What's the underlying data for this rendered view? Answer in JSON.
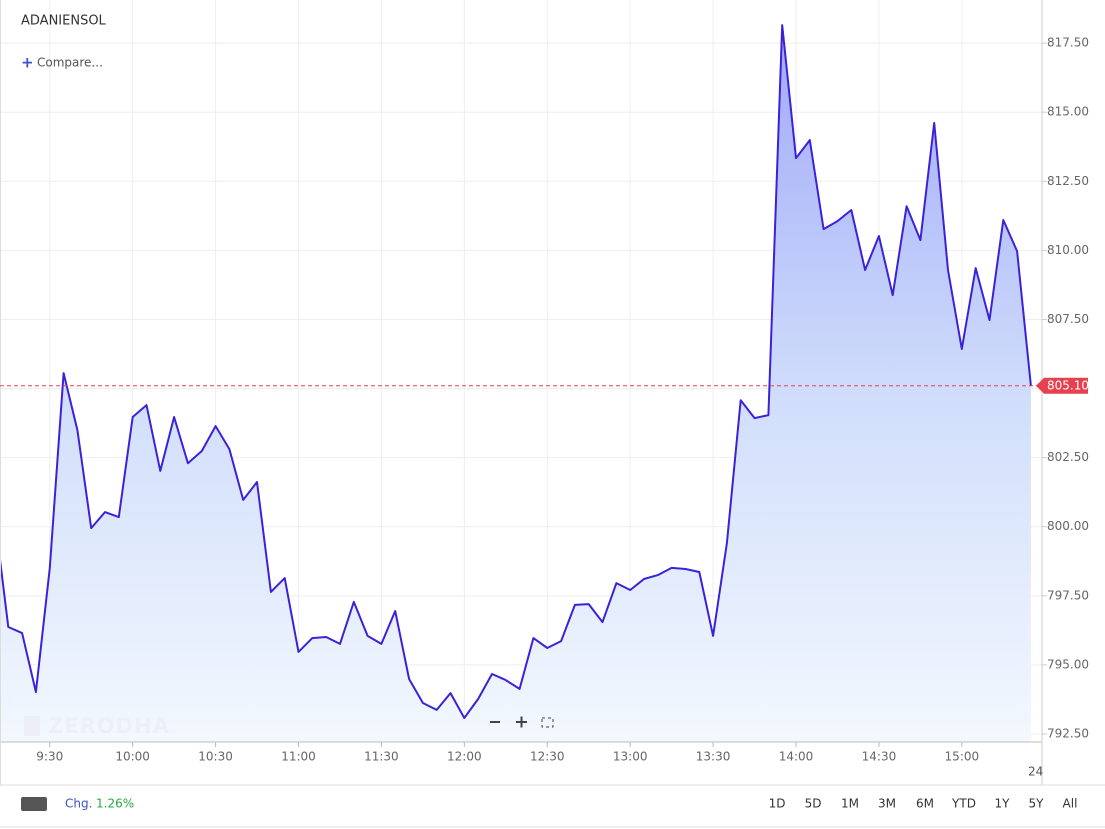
{
  "chart_data": {
    "type": "area",
    "title": "ADANIENSOL",
    "compare": "Compare...",
    "watermark": "ZERODHA",
    "date_label": "24",
    "x": [
      "9:10",
      "9:15",
      "9:20",
      "9:25",
      "9:30",
      "9:35",
      "9:40",
      "9:45",
      "9:50",
      "9:55",
      "10:00",
      "10:05",
      "10:10",
      "10:15",
      "10:20",
      "10:25",
      "10:30",
      "10:35",
      "10:40",
      "10:45",
      "10:50",
      "10:55",
      "11:00",
      "11:05",
      "11:10",
      "11:15",
      "11:20",
      "11:25",
      "11:30",
      "11:35",
      "11:40",
      "11:45",
      "11:50",
      "11:55",
      "12:00",
      "12:05",
      "12:10",
      "12:15",
      "12:20",
      "12:25",
      "12:30",
      "12:35",
      "12:40",
      "12:45",
      "12:50",
      "12:55",
      "13:00",
      "13:05",
      "13:10",
      "13:15",
      "13:20",
      "13:25",
      "13:30",
      "13:35",
      "13:40",
      "13:45",
      "13:50",
      "13:55",
      "14:00",
      "14:05",
      "14:10",
      "14:15",
      "14:20",
      "14:25",
      "14:30",
      "14:35",
      "14:40",
      "14:45",
      "14:50",
      "14:55",
      "15:00",
      "15:05",
      "15:10",
      "15:15",
      "15:20",
      "15:25"
    ],
    "series": [
      {
        "name": "ADANIENSOL",
        "color": "#3b22d9",
        "values": [
          800.42,
          796.37,
          796.15,
          794.02,
          798.51,
          805.56,
          803.5,
          799.95,
          800.53,
          800.35,
          803.97,
          804.4,
          802.02,
          803.97,
          802.3,
          802.74,
          803.64,
          802.81,
          800.97,
          801.62,
          797.64,
          798.14,
          795.47,
          795.97,
          796.01,
          795.76,
          797.28,
          796.05,
          795.76,
          796.95,
          794.49,
          793.62,
          793.37,
          793.98,
          793.08,
          793.77,
          794.67,
          794.45,
          794.13,
          795.97,
          795.61,
          795.86,
          797.17,
          797.2,
          796.55,
          797.96,
          797.71,
          798.11,
          798.25,
          798.51,
          798.47,
          798.36,
          796.05,
          799.41,
          804.58,
          803.93,
          804.04,
          818.15,
          813.34,
          813.99,
          810.77,
          811.06,
          811.46,
          809.29,
          810.52,
          808.38,
          811.6,
          810.37,
          814.61,
          809.29,
          806.43,
          809.36,
          807.48,
          811.1,
          809.97,
          805.1
        ]
      }
    ],
    "last_price": {
      "value": 805.1,
      "label": "805.10"
    },
    "xlim": [
      "9:12",
      "15:29"
    ],
    "xticks": [
      "9:30",
      "10:00",
      "10:30",
      "11:00",
      "11:30",
      "12:00",
      "12:30",
      "13:00",
      "13:30",
      "14:00",
      "14:30",
      "15:00"
    ],
    "ylim": [
      792.21,
      819.06
    ],
    "yticks": [
      {
        "value": 792.5,
        "label": "792.50"
      },
      {
        "value": 795,
        "label": "795.00"
      },
      {
        "value": 797.5,
        "label": "797.50"
      },
      {
        "value": 800,
        "label": "800.00"
      },
      {
        "value": 802.5,
        "label": "802.50"
      },
      {
        "value": 805,
        "label": "805.00"
      },
      {
        "value": 807.5,
        "label": "807.50"
      },
      {
        "value": 810,
        "label": "810.00"
      },
      {
        "value": 812.5,
        "label": "812.50"
      },
      {
        "value": 815,
        "label": "815.00"
      },
      {
        "value": 817.5,
        "label": "817.50"
      }
    ],
    "grid": true,
    "change_label": "Chg.",
    "change": {
      "value": 1.26,
      "label": "1.26%"
    },
    "ranges": [
      "1D",
      "5D",
      "1M",
      "3M",
      "6M",
      "YTD",
      "1Y",
      "5Y",
      "All"
    ]
  }
}
